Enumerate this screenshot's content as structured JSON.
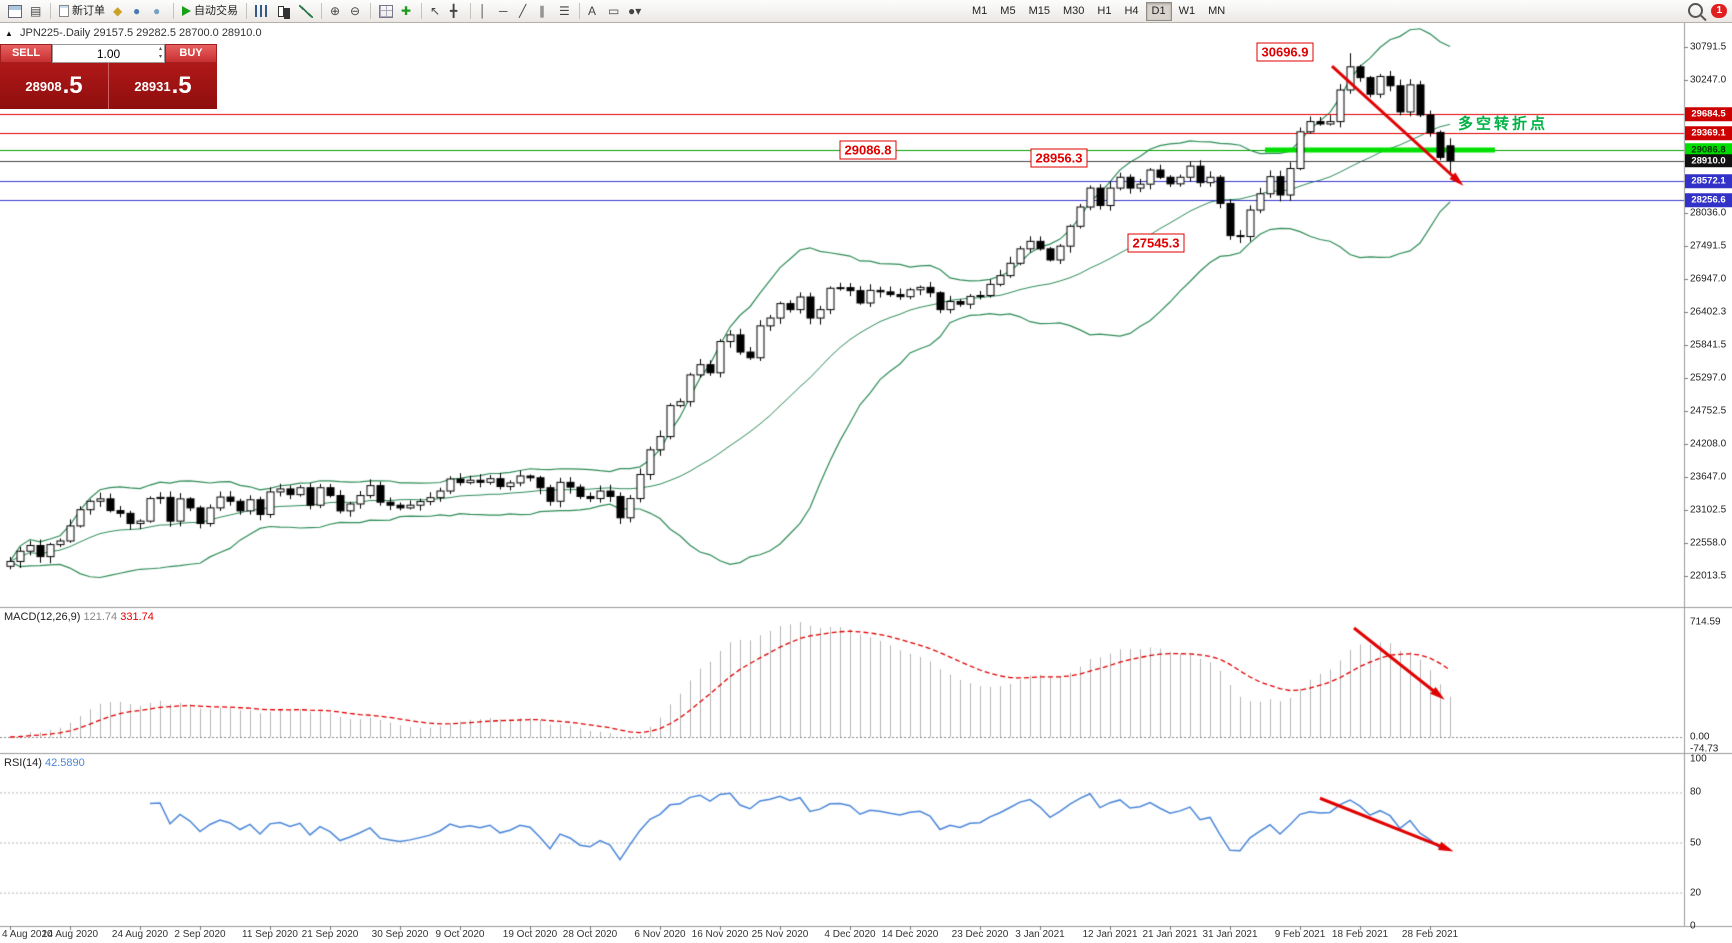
{
  "toolbar": {
    "items": [
      {
        "name": "new-chart-icon",
        "cls": "i-window"
      },
      {
        "name": "chart-profiles-icon",
        "glyph": "▤"
      },
      {
        "div": true
      },
      {
        "name": "new-order-button",
        "cls": "i-sheet",
        "label": "新订单"
      },
      {
        "name": "metaeditor-icon",
        "glyph": "◆",
        "color": "#c9a227"
      },
      {
        "name": "market-icon",
        "glyph": "●",
        "color": "#4a7ab5"
      },
      {
        "name": "signals-icon",
        "glyph": "●",
        "color": "#7aa0c4"
      },
      {
        "div": true
      },
      {
        "name": "auto-trading-button",
        "cls": "i-play",
        "label": "自动交易"
      },
      {
        "div": true
      },
      {
        "name": "bar-chart-icon",
        "cls": "i-bars"
      },
      {
        "name": "candlestick-chart-icon",
        "cls": "i-candles"
      },
      {
        "name": "line-chart-icon",
        "cls": "i-line"
      },
      {
        "div": true
      },
      {
        "name": "zoom-in-icon",
        "glyph": "⊕"
      },
      {
        "name": "zoom-out-icon",
        "glyph": "⊖"
      },
      {
        "div": true
      },
      {
        "name": "tile-windows-icon",
        "cls": "i-grid"
      },
      {
        "name": "indicators-icon",
        "glyph": "✚",
        "color": "#1a9c1a"
      },
      {
        "div": true
      },
      {
        "name": "cursor-icon",
        "glyph": "↖"
      },
      {
        "name": "crosshair-icon",
        "glyph": "╋"
      },
      {
        "div": true
      },
      {
        "name": "vertical-line-icon",
        "glyph": "│"
      },
      {
        "name": "horizontal-line-icon",
        "glyph": "─"
      },
      {
        "name": "trendline-icon",
        "glyph": "╱"
      },
      {
        "name": "equidistant-channel-icon",
        "glyph": "∥"
      },
      {
        "name": "fibonacci-icon",
        "glyph": "☰"
      },
      {
        "div": true
      },
      {
        "name": "text-icon",
        "glyph": "A"
      },
      {
        "name": "text-label-icon",
        "glyph": "▭"
      },
      {
        "name": "arrows-dropdown-icon",
        "glyph": "●▾"
      }
    ],
    "timeframes": [
      "M1",
      "M5",
      "M15",
      "M30",
      "H1",
      "H4",
      "D1",
      "W1",
      "MN"
    ],
    "active_timeframe": "D1",
    "notification_count": "1"
  },
  "symbol_header": {
    "collapse_icon": "▲",
    "name": "JPN225-.Daily",
    "ohlc": "29157.5 29282.5 28700.0 28910.0"
  },
  "order_panel": {
    "sell_label": "SELL",
    "buy_label": "BUY",
    "volume": "1.00",
    "sell_price_int": "28908",
    "sell_price_frac": ".5",
    "buy_price_int": "28931",
    "buy_price_frac": ".5"
  },
  "macd_panel": {
    "name": "MACD(12,26,9)",
    "value_main": "121.74",
    "value_signal": "331.74"
  },
  "rsi_panel": {
    "name": "RSI(14)",
    "value": "42.5890"
  },
  "chart_data": {
    "type": "candlestick",
    "symbol": "JPN225-.Daily",
    "timeframe": "Daily",
    "last_ohlc": {
      "open": 29157.5,
      "high": 29282.5,
      "low": 28700.0,
      "close": 28910.0
    },
    "main_ylim": [
      21493,
      31215
    ],
    "price_ticks": [
      "30791.5",
      "30247.0",
      "28036.0",
      "27491.5",
      "26947.0",
      "26402.3",
      "25841.5",
      "25297.0",
      "24752.5",
      "24208.0",
      "23647.0",
      "23102.5",
      "22558.0",
      "22013.5"
    ],
    "x_dates": [
      {
        "i": 0,
        "label": "4 Aug 2020"
      },
      {
        "i": 6,
        "label": "14 Aug 2020"
      },
      {
        "i": 13,
        "label": "24 Aug 2020"
      },
      {
        "i": 19,
        "label": "2 Sep 2020"
      },
      {
        "i": 26,
        "label": "11 Sep 2020"
      },
      {
        "i": 32,
        "label": "21 Sep 2020"
      },
      {
        "i": 39,
        "label": "30 Sep 2020"
      },
      {
        "i": 45,
        "label": "9 Oct 2020"
      },
      {
        "i": 52,
        "label": "19 Oct 2020"
      },
      {
        "i": 58,
        "label": "28 Oct 2020"
      },
      {
        "i": 65,
        "label": "6 Nov 2020"
      },
      {
        "i": 71,
        "label": "16 Nov 2020"
      },
      {
        "i": 77,
        "label": "25 Nov 2020"
      },
      {
        "i": 84,
        "label": "4 Dec 2020"
      },
      {
        "i": 90,
        "label": "14 Dec 2020"
      },
      {
        "i": 97,
        "label": "23 Dec 2020"
      },
      {
        "i": 103,
        "label": "3 Jan 2021"
      },
      {
        "i": 110,
        "label": "12 Jan 2021"
      },
      {
        "i": 116,
        "label": "21 Jan 2021"
      },
      {
        "i": 122,
        "label": "31 Jan 2021"
      },
      {
        "i": 129,
        "label": "9 Feb 2021"
      },
      {
        "i": 135,
        "label": "18 Feb 2021"
      },
      {
        "i": 142,
        "label": "28 Feb 2021"
      }
    ],
    "closes": [
      22250,
      22420,
      22515,
      22330,
      22530,
      22590,
      22840,
      23110,
      23250,
      23290,
      23095,
      23050,
      22880,
      22920,
      23295,
      23315,
      22920,
      23290,
      23140,
      22880,
      23140,
      23320,
      23250,
      23090,
      23275,
      23030,
      23405,
      23455,
      23360,
      23475,
      23185,
      23475,
      23345,
      23090,
      23205,
      23345,
      23510,
      23235,
      23185,
      23140,
      23185,
      23245,
      23310,
      23420,
      23620,
      23560,
      23600,
      23565,
      23625,
      23495,
      23555,
      23670,
      23640,
      23475,
      23250,
      23565,
      23485,
      23330,
      23295,
      23420,
      23330,
      22975,
      23295,
      23695,
      24105,
      24325,
      24840,
      24905,
      25350,
      25520,
      25385,
      25905,
      26015,
      25730,
      25635,
      26165,
      26295,
      26535,
      26435,
      26645,
      26295,
      26435,
      26790,
      26800,
      26750,
      26545,
      26755,
      26730,
      26685,
      26650,
      26765,
      26805,
      26715,
      26435,
      26570,
      26525,
      26655,
      26670,
      26855,
      27000,
      27205,
      27445,
      27570,
      27445,
      27260,
      27490,
      27820,
      28140,
      28455,
      28165,
      28455,
      28635,
      28455,
      28520,
      28755,
      28635,
      28525,
      28635,
      28820,
      28545,
      28635,
      28200,
      27665,
      27650,
      28090,
      28360,
      28645,
      28340,
      28780,
      29390,
      29560,
      29520,
      29560,
      30085,
      30470,
      30290,
      30015,
      30310,
      30155,
      29720,
      30170,
      29670,
      29380,
      28965,
      28910
    ],
    "peak_index": 134,
    "peak_high": 30696.9,
    "bollinger": {
      "period": 20,
      "deviation": 2,
      "color": "#2e8b57"
    },
    "levels": [
      {
        "price": 29684.5,
        "tag": "29684.5",
        "color": "#e00000",
        "width": 1,
        "tag_bg": "#cc0000",
        "tag_fg": "#ffffff"
      },
      {
        "price": 29369.1,
        "tag": "29369.1",
        "color": "#e00000",
        "width": 1,
        "tag_bg": "#cc0000",
        "tag_fg": "#ffffff"
      },
      {
        "price": 29086.8,
        "tag": "29086.8",
        "color": "#00a000",
        "width": 1,
        "tag_bg": "#00dd00",
        "tag_fg": "#003300"
      },
      {
        "price": 28910.0,
        "tag": "28910.0",
        "color": "#444444",
        "width": 1,
        "tag_bg": "#111111",
        "tag_fg": "#ffffff"
      },
      {
        "price": 28572.1,
        "tag": "28572.1",
        "color": "#3a3ad0",
        "width": 1,
        "tag_bg": "#3232c8",
        "tag_fg": "#ffffff"
      },
      {
        "price": 28256.6,
        "tag": "28256.6",
        "color": "#3a3ad0",
        "width": 1,
        "tag_bg": "#3232c8",
        "tag_fg": "#ffffff"
      }
    ],
    "green_segment": {
      "price": 29086.8,
      "x1_index": 125.5,
      "x2_index": 148.5,
      "color": "#00e000",
      "width": 5
    },
    "macd": {
      "fast": 12,
      "slow": 26,
      "signal": 9,
      "value_main": 121.74,
      "value_signal": 331.74,
      "scale_max": 714.59,
      "ticks": [
        "714.59",
        "0.00",
        "-74.73"
      ]
    },
    "rsi": {
      "period": 14,
      "value": 42.589,
      "ticks": [
        "100",
        "80",
        "50",
        "20",
        "0"
      ],
      "levels": [
        80,
        50,
        20
      ],
      "color": "#4a86d8"
    },
    "arrow_color": "#e00000",
    "arrows": [
      {
        "panel": "main",
        "from": {
          "i": 132.2,
          "v": 30480
        },
        "to": {
          "i": 144.9,
          "v": 28560
        }
      },
      {
        "panel": "macd",
        "from": {
          "i": 134.4,
          "v": 677
        },
        "to": {
          "i": 143,
          "v": 255
        }
      },
      {
        "panel": "rsi",
        "from": {
          "i": 131,
          "v": 76.5
        },
        "to": {
          "i": 143.8,
          "v": 46
        }
      }
    ],
    "annotations": [
      {
        "text": "30696.9",
        "i": 127.5,
        "price": 30710
      },
      {
        "text": "29086.8",
        "i": 85.8,
        "price": 29086.8
      },
      {
        "text": "28956.3",
        "i": 104.9,
        "price": 28956.3
      },
      {
        "text": "27545.3",
        "i": 114.6,
        "price": 27545.3
      }
    ],
    "turning_point": {
      "text": "多空转折点",
      "i": 144.8,
      "price": 29520,
      "color": "#00b244"
    }
  }
}
